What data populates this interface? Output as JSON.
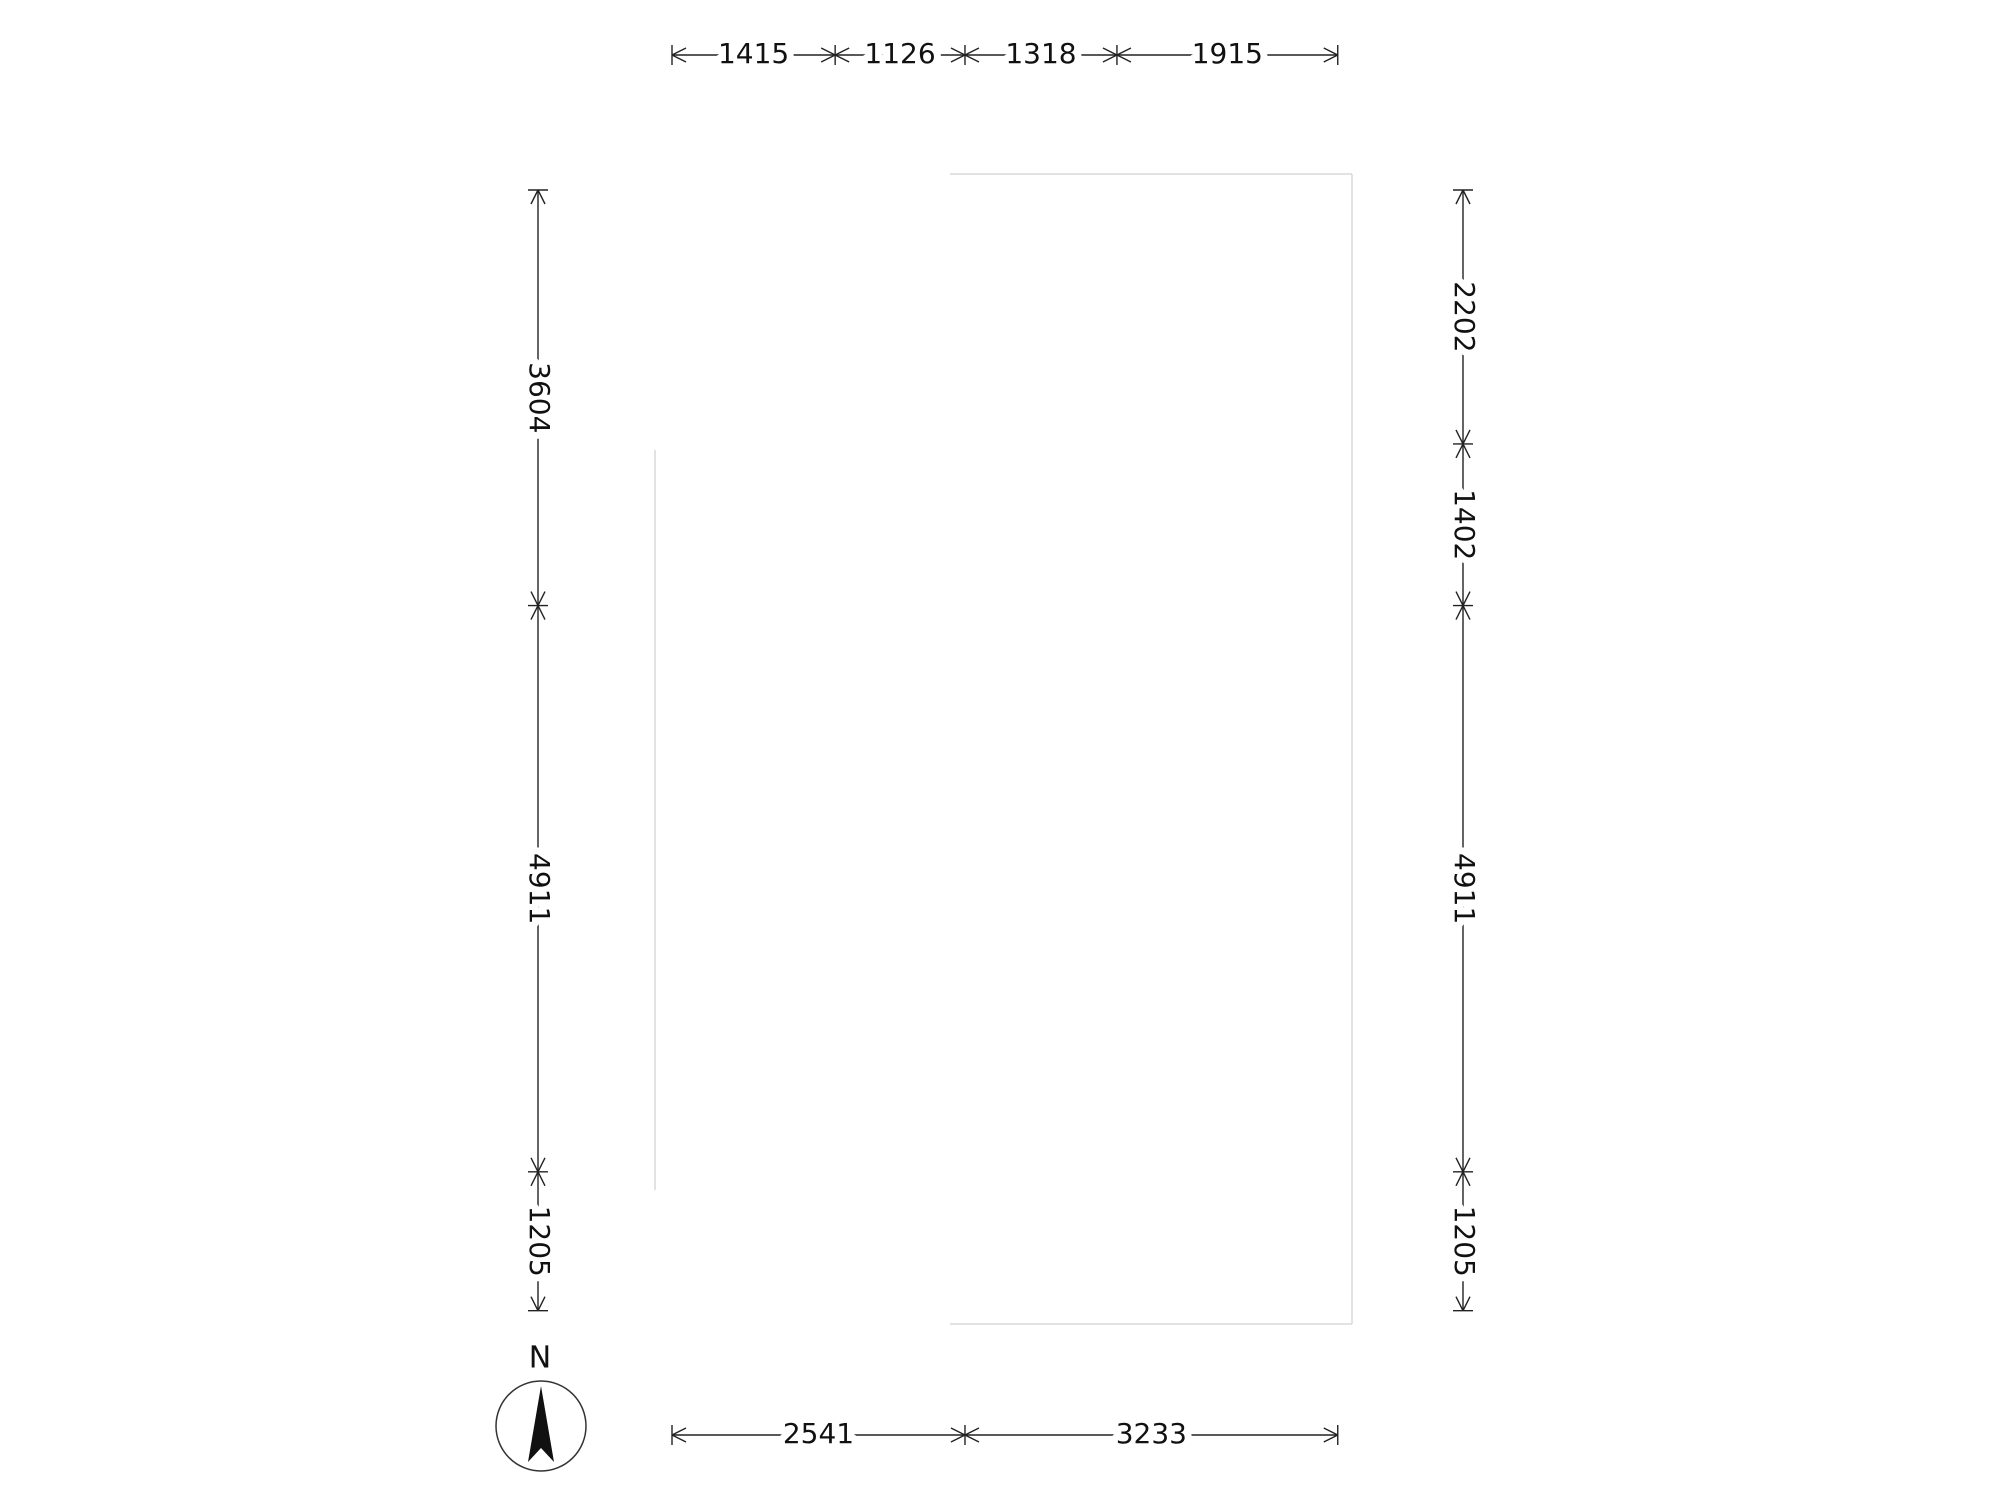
{
  "north_label": "N",
  "dimensions": {
    "top": [
      1415,
      1126,
      1318,
      1915
    ],
    "bottom": [
      2541,
      3233
    ],
    "left": [
      3604,
      4911,
      1205
    ],
    "right": [
      2202,
      1402,
      4911,
      1205
    ]
  }
}
